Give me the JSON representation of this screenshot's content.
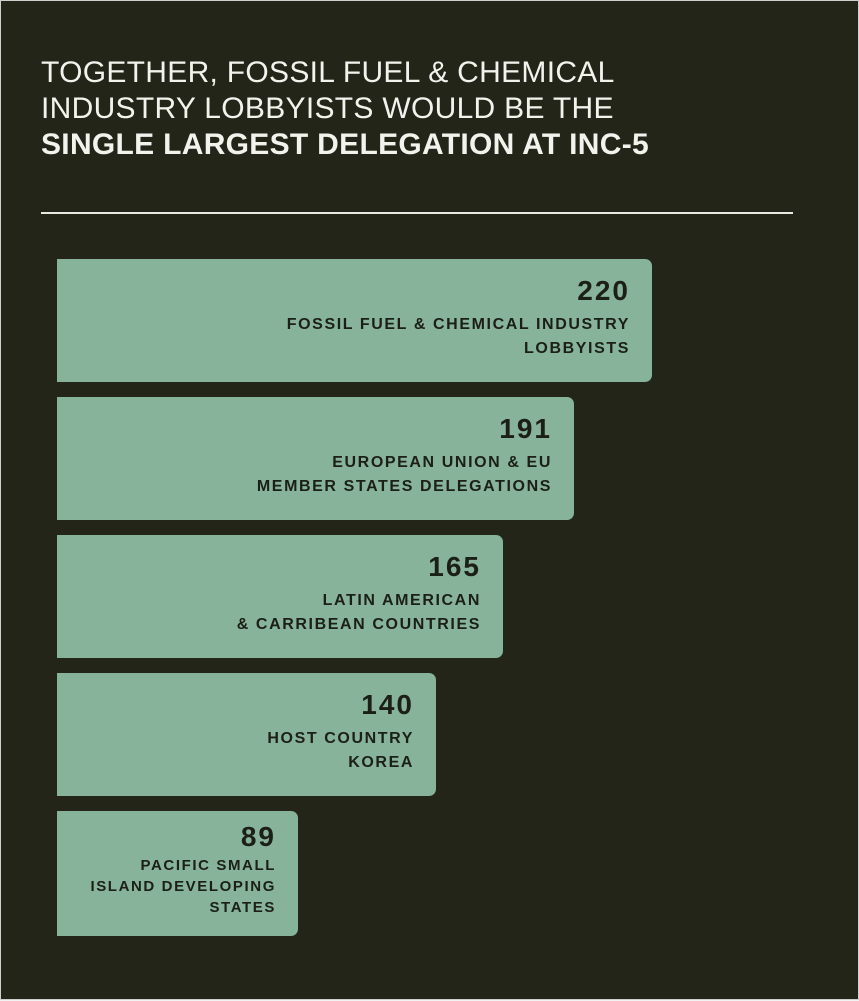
{
  "title": {
    "line1": "TOGETHER, FOSSIL FUEL & CHEMICAL",
    "line2": "INDUSTRY LOBBYISTS WOULD BE THE",
    "line3": "SINGLE LARGEST DELEGATION AT INC-5"
  },
  "colors": {
    "background": "#232519",
    "bar": "#86b39a",
    "text_light": "#f3f3ee",
    "text_dark": "#1c1f16"
  },
  "chart_data": {
    "type": "bar",
    "orientation": "horizontal",
    "categories": [
      [
        "FOSSIL FUEL & CHEMICAL INDUSTRY",
        "LOBBYISTS"
      ],
      [
        "EUROPEAN UNION & EU",
        "MEMBER STATES DELEGATIONS"
      ],
      [
        "LATIN AMERICAN",
        "& CARRIBEAN COUNTRIES"
      ],
      [
        "HOST COUNTRY",
        "KOREA"
      ],
      [
        "PACIFIC SMALL",
        "ISLAND DEVELOPING",
        "STATES"
      ]
    ],
    "values": [
      220,
      191,
      165,
      140,
      89
    ],
    "grid": false,
    "legend": "none"
  }
}
